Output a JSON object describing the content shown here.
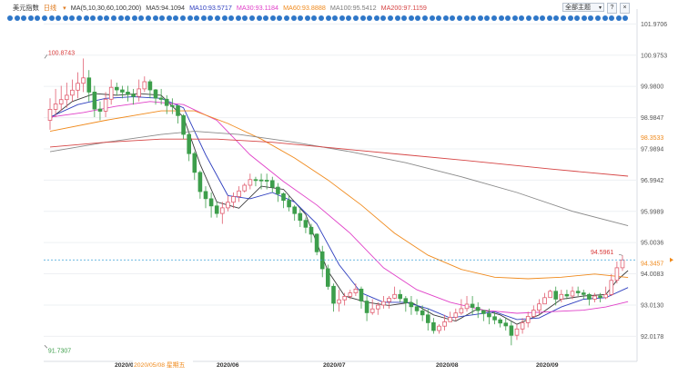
{
  "header": {
    "symbol": "美元指数",
    "period": "日线",
    "ma_label": "MA(5,10,30,60,100,200)",
    "ma_values": [
      {
        "text": "MA5:94.1094",
        "color": "#3b3b3b"
      },
      {
        "text": "MA10:93.5717",
        "color": "#2f3fbf"
      },
      {
        "text": "MA30:93.1184",
        "color": "#e040c8"
      },
      {
        "text": "MA60:93.8888",
        "color": "#f08a1c"
      },
      {
        "text": "MA100:95.5412",
        "color": "#7a7a7a"
      },
      {
        "text": "MA200:97.1159",
        "color": "#d64545"
      }
    ],
    "select_label": "全部主题",
    "help_symbol": "?",
    "close_symbol": "×"
  },
  "colors": {
    "up": "#e05d6f",
    "down": "#3d9e4b",
    "axis_text": "#555555",
    "dot_blue": "#2f77c8"
  },
  "dot_count": 90,
  "chart_data": {
    "type": "candlestick",
    "y_ticks": [
      "101.9706",
      "100.9753",
      "99.9800",
      "98.9847",
      "97.9894",
      "96.9942",
      "95.9989",
      "95.0036",
      "94.0083",
      "93.0130",
      "92.0178"
    ],
    "ylim": [
      91.42,
      102.3
    ],
    "x_ticks": [
      "2020/0",
      "2020/06",
      "2020/07",
      "2020/08",
      "2020/09"
    ],
    "x_highlight": "2020/05/08 星期五",
    "annotations": {
      "high": "100.8743",
      "low": "91.7307",
      "last_high": "94.5961"
    },
    "right_labels": [
      {
        "text": "98.3533",
        "value": 98.3533,
        "color": "#f08a1c"
      },
      {
        "text": "94.3457",
        "value": 94.3457,
        "color": "#f08a1c"
      }
    ],
    "current_price": 94.45,
    "candles": [
      [
        98.9,
        99.25,
        99.6,
        98.6
      ],
      [
        99.25,
        99.42,
        99.9,
        99.0
      ],
      [
        99.42,
        99.56,
        100.0,
        99.2
      ],
      [
        99.56,
        99.7,
        100.1,
        99.3
      ],
      [
        99.7,
        99.86,
        100.2,
        99.5
      ],
      [
        99.86,
        100.08,
        100.43,
        99.6
      ],
      [
        100.08,
        100.25,
        100.87,
        99.8
      ],
      [
        100.25,
        99.8,
        100.5,
        99.5
      ],
      [
        99.8,
        99.26,
        100.0,
        99.0
      ],
      [
        99.26,
        99.19,
        99.5,
        98.9
      ],
      [
        99.19,
        99.57,
        99.8,
        99.0
      ],
      [
        99.57,
        99.95,
        100.2,
        99.4
      ],
      [
        99.95,
        99.87,
        100.1,
        99.7
      ],
      [
        99.87,
        99.8,
        100.0,
        99.6
      ],
      [
        99.8,
        99.73,
        100.0,
        99.5
      ],
      [
        99.73,
        99.66,
        99.9,
        99.4
      ],
      [
        99.66,
        99.9,
        100.2,
        99.5
      ],
      [
        99.9,
        100.13,
        100.3,
        99.8
      ],
      [
        100.13,
        99.87,
        100.2,
        99.6
      ],
      [
        99.87,
        99.61,
        99.9,
        99.4
      ],
      [
        99.61,
        99.57,
        99.9,
        99.4
      ],
      [
        99.57,
        99.37,
        99.7,
        99.1
      ],
      [
        99.37,
        99.36,
        99.6,
        99.1
      ],
      [
        99.36,
        99.05,
        99.4,
        98.8
      ],
      [
        99.05,
        98.45,
        99.1,
        98.3
      ],
      [
        98.45,
        97.84,
        98.5,
        97.6
      ],
      [
        97.84,
        97.24,
        97.9,
        97.0
      ],
      [
        97.24,
        96.63,
        97.3,
        96.4
      ],
      [
        96.63,
        96.4,
        96.8,
        96.1
      ],
      [
        96.4,
        96.17,
        96.6,
        95.8
      ],
      [
        96.17,
        95.93,
        96.3,
        95.8
      ],
      [
        95.93,
        96.11,
        96.3,
        95.6
      ],
      [
        96.11,
        96.29,
        96.5,
        96.0
      ],
      [
        96.29,
        96.47,
        96.6,
        96.1
      ],
      [
        96.47,
        96.65,
        96.8,
        96.3
      ],
      [
        96.65,
        96.83,
        96.9,
        96.6
      ],
      [
        96.83,
        97.01,
        97.2,
        96.7
      ],
      [
        97.01,
        97.0,
        97.1,
        96.8
      ],
      [
        97.0,
        96.99,
        97.2,
        96.7
      ],
      [
        96.99,
        96.98,
        97.2,
        96.7
      ],
      [
        96.98,
        96.77,
        97.1,
        96.6
      ],
      [
        96.77,
        96.56,
        96.9,
        96.3
      ],
      [
        96.56,
        96.35,
        96.6,
        96.1
      ],
      [
        96.35,
        96.14,
        96.5,
        96.0
      ],
      [
        96.14,
        95.93,
        96.2,
        95.7
      ],
      [
        95.93,
        95.71,
        96.1,
        95.5
      ],
      [
        95.71,
        95.49,
        95.8,
        95.3
      ],
      [
        95.49,
        95.27,
        95.6,
        95.0
      ],
      [
        95.27,
        94.71,
        95.3,
        94.6
      ],
      [
        94.71,
        94.17,
        94.9,
        93.9
      ],
      [
        94.17,
        93.61,
        94.3,
        93.5
      ],
      [
        93.61,
        93.07,
        93.7,
        92.8
      ],
      [
        93.07,
        93.18,
        93.5,
        92.8
      ],
      [
        93.18,
        93.29,
        93.4,
        93.0
      ],
      [
        93.29,
        93.4,
        93.5,
        93.2
      ],
      [
        93.4,
        93.52,
        93.7,
        93.3
      ],
      [
        93.52,
        93.14,
        93.6,
        92.9
      ],
      [
        93.14,
        92.77,
        93.3,
        92.5
      ],
      [
        92.77,
        92.89,
        93.2,
        92.7
      ],
      [
        92.89,
        93.01,
        93.1,
        92.7
      ],
      [
        93.01,
        93.12,
        93.3,
        92.9
      ],
      [
        93.12,
        93.23,
        93.3,
        92.9
      ],
      [
        93.23,
        93.35,
        93.6,
        93.2
      ],
      [
        93.35,
        93.22,
        93.5,
        93.1
      ],
      [
        93.22,
        93.09,
        93.3,
        92.8
      ],
      [
        93.09,
        92.96,
        93.3,
        92.7
      ],
      [
        92.96,
        92.83,
        93.2,
        92.7
      ],
      [
        92.83,
        92.7,
        93.0,
        92.5
      ],
      [
        92.7,
        92.45,
        92.9,
        92.2
      ],
      [
        92.45,
        92.2,
        92.6,
        92.1
      ],
      [
        92.2,
        92.34,
        92.4,
        92.1
      ],
      [
        92.34,
        92.48,
        92.7,
        92.2
      ],
      [
        92.48,
        92.62,
        92.8,
        92.5
      ],
      [
        92.62,
        92.76,
        92.9,
        92.5
      ],
      [
        92.76,
        92.9,
        93.2,
        92.7
      ],
      [
        92.9,
        93.04,
        93.3,
        92.8
      ],
      [
        93.04,
        92.94,
        93.3,
        92.7
      ],
      [
        92.94,
        92.84,
        93.1,
        92.6
      ],
      [
        92.84,
        92.74,
        92.8,
        92.5
      ],
      [
        92.74,
        92.64,
        92.9,
        92.4
      ],
      [
        92.64,
        92.54,
        92.8,
        92.4
      ],
      [
        92.54,
        92.44,
        92.6,
        92.3
      ],
      [
        92.44,
        92.35,
        92.6,
        92.2
      ],
      [
        92.35,
        92.05,
        92.5,
        91.73
      ],
      [
        92.05,
        92.25,
        92.4,
        91.9
      ],
      [
        92.25,
        92.45,
        92.6,
        92.1
      ],
      [
        92.45,
        92.65,
        92.8,
        92.3
      ],
      [
        92.65,
        92.85,
        93.0,
        92.6
      ],
      [
        92.85,
        93.05,
        93.2,
        92.7
      ],
      [
        93.05,
        93.25,
        93.4,
        93.1
      ],
      [
        93.25,
        93.45,
        93.5,
        93.3
      ],
      [
        93.45,
        93.2,
        93.6,
        93.0
      ],
      [
        93.2,
        93.35,
        93.5,
        93.1
      ],
      [
        93.35,
        93.3,
        93.5,
        93.2
      ],
      [
        93.3,
        93.45,
        93.6,
        93.2
      ],
      [
        93.45,
        93.4,
        93.6,
        93.3
      ],
      [
        93.4,
        93.35,
        93.5,
        93.2
      ],
      [
        93.35,
        93.2,
        93.4,
        93.0
      ],
      [
        93.2,
        93.3,
        93.4,
        93.1
      ],
      [
        93.3,
        93.25,
        93.4,
        93.1
      ],
      [
        93.25,
        93.35,
        93.6,
        93.2
      ],
      [
        93.35,
        93.8,
        94.0,
        93.3
      ],
      [
        93.8,
        94.2,
        94.4,
        93.7
      ],
      [
        94.2,
        94.45,
        94.6,
        94.1
      ]
    ],
    "series": [
      {
        "name": "MA5",
        "color": "#3b3b3b",
        "points": [
          [
            0,
            98.95
          ],
          [
            4,
            99.5
          ],
          [
            8,
            99.75
          ],
          [
            12,
            99.7
          ],
          [
            16,
            99.75
          ],
          [
            20,
            99.7
          ],
          [
            24,
            99.0
          ],
          [
            27,
            97.5
          ],
          [
            30,
            96.3
          ],
          [
            34,
            96.1
          ],
          [
            38,
            96.8
          ],
          [
            42,
            96.7
          ],
          [
            46,
            95.9
          ],
          [
            50,
            94.1
          ],
          [
            53,
            93.3
          ],
          [
            57,
            93.1
          ],
          [
            61,
            93.0
          ],
          [
            65,
            93.1
          ],
          [
            69,
            92.7
          ],
          [
            73,
            92.5
          ],
          [
            77,
            92.9
          ],
          [
            81,
            92.7
          ],
          [
            84,
            92.4
          ],
          [
            88,
            92.7
          ],
          [
            92,
            93.2
          ],
          [
            96,
            93.3
          ],
          [
            100,
            93.35
          ],
          [
            102,
            93.8
          ],
          [
            104,
            94.11
          ]
        ]
      },
      {
        "name": "MA10",
        "color": "#2f3fbf",
        "points": [
          [
            0,
            99.0
          ],
          [
            5,
            99.4
          ],
          [
            10,
            99.6
          ],
          [
            15,
            99.65
          ],
          [
            20,
            99.6
          ],
          [
            24,
            99.3
          ],
          [
            28,
            97.8
          ],
          [
            32,
            96.5
          ],
          [
            36,
            96.4
          ],
          [
            40,
            96.6
          ],
          [
            44,
            96.3
          ],
          [
            48,
            95.6
          ],
          [
            52,
            94.3
          ],
          [
            56,
            93.4
          ],
          [
            60,
            93.1
          ],
          [
            64,
            93.1
          ],
          [
            68,
            92.9
          ],
          [
            72,
            92.6
          ],
          [
            76,
            92.7
          ],
          [
            80,
            92.8
          ],
          [
            84,
            92.55
          ],
          [
            88,
            92.6
          ],
          [
            92,
            92.95
          ],
          [
            96,
            93.2
          ],
          [
            100,
            93.25
          ],
          [
            104,
            93.57
          ]
        ]
      },
      {
        "name": "MA30",
        "color": "#e040c8",
        "points": [
          [
            0,
            99.0
          ],
          [
            6,
            99.15
          ],
          [
            12,
            99.35
          ],
          [
            18,
            99.5
          ],
          [
            24,
            99.4
          ],
          [
            30,
            98.9
          ],
          [
            36,
            97.8
          ],
          [
            42,
            96.95
          ],
          [
            48,
            96.2
          ],
          [
            54,
            95.3
          ],
          [
            60,
            94.2
          ],
          [
            66,
            93.5
          ],
          [
            72,
            93.1
          ],
          [
            78,
            92.85
          ],
          [
            84,
            92.75
          ],
          [
            90,
            92.8
          ],
          [
            96,
            92.85
          ],
          [
            100,
            92.95
          ],
          [
            104,
            93.12
          ]
        ]
      },
      {
        "name": "MA60",
        "color": "#f08a1c",
        "points": [
          [
            0,
            98.55
          ],
          [
            10,
            98.9
          ],
          [
            20,
            99.2
          ],
          [
            26,
            99.2
          ],
          [
            32,
            98.8
          ],
          [
            38,
            98.3
          ],
          [
            44,
            97.7
          ],
          [
            50,
            97.0
          ],
          [
            56,
            96.2
          ],
          [
            62,
            95.3
          ],
          [
            68,
            94.6
          ],
          [
            74,
            94.15
          ],
          [
            80,
            93.9
          ],
          [
            86,
            93.85
          ],
          [
            92,
            93.9
          ],
          [
            98,
            94.0
          ],
          [
            104,
            93.89
          ]
        ]
      },
      {
        "name": "MA100",
        "color": "#8a8a8a",
        "points": [
          [
            0,
            97.9
          ],
          [
            10,
            98.2
          ],
          [
            20,
            98.45
          ],
          [
            26,
            98.55
          ],
          [
            34,
            98.45
          ],
          [
            44,
            98.2
          ],
          [
            54,
            97.9
          ],
          [
            64,
            97.55
          ],
          [
            74,
            97.1
          ],
          [
            84,
            96.6
          ],
          [
            94,
            96.0
          ],
          [
            104,
            95.54
          ]
        ]
      },
      {
        "name": "MA200",
        "color": "#d64545",
        "points": [
          [
            0,
            98.05
          ],
          [
            10,
            98.2
          ],
          [
            20,
            98.3
          ],
          [
            30,
            98.3
          ],
          [
            40,
            98.2
          ],
          [
            52,
            98.0
          ],
          [
            64,
            97.8
          ],
          [
            76,
            97.6
          ],
          [
            90,
            97.35
          ],
          [
            104,
            97.12
          ]
        ]
      }
    ]
  }
}
